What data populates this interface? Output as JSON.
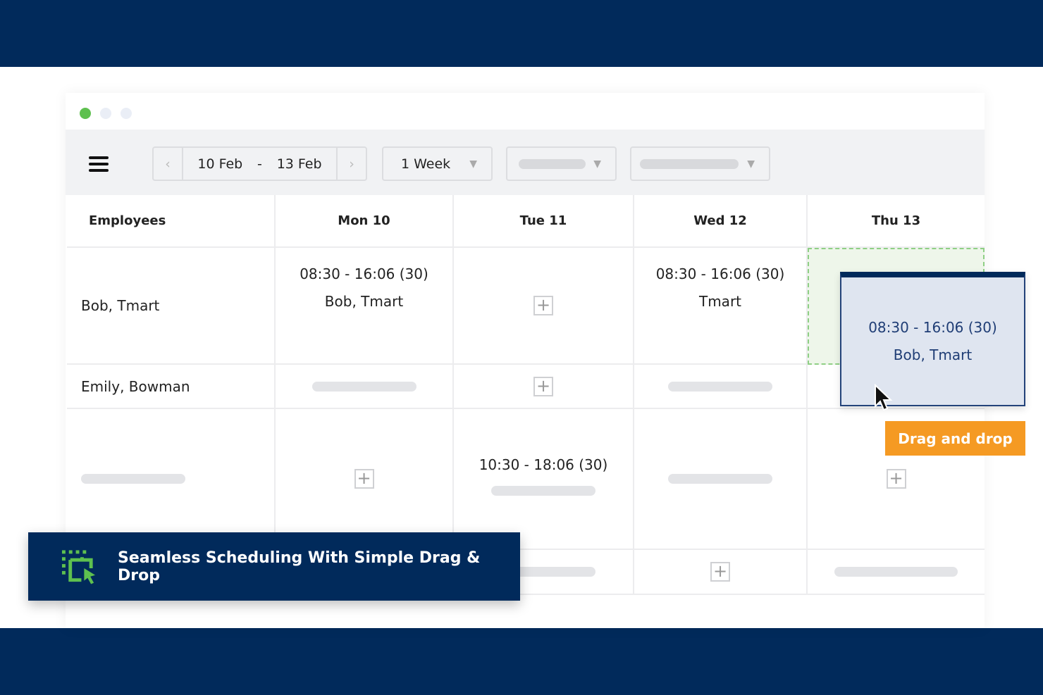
{
  "colors": {
    "banner": "#012a5b",
    "accent_orange": "#f59a23",
    "green": "#5ec04f",
    "drag_card": "#dfe5f0"
  },
  "toolbar": {
    "date_start": "10 Feb",
    "date_sep": "-",
    "date_end": "13 Feb",
    "range_select": "1 Week"
  },
  "grid": {
    "headers": [
      "Employees",
      "Mon 10",
      "Tue 11",
      "Wed 12",
      "Thu 13"
    ],
    "rows": [
      {
        "employee": "Bob, Tmart",
        "mon": {
          "time": "08:30 - 16:06 (30)",
          "name": "Bob, Tmart"
        },
        "wed": {
          "time": "08:30 - 16:06 (30)",
          "name": "Tmart"
        }
      },
      {
        "employee": "Emily, Bowman"
      },
      {
        "tue": {
          "time": "10:30 - 18:06 (30)"
        }
      }
    ]
  },
  "drag_card": {
    "time": "08:30 - 16:06 (30)",
    "name": "Bob, Tmart"
  },
  "drag_label": "Drag and drop",
  "banner": {
    "text": "Seamless Scheduling With Simple Drag & Drop",
    "icon": "drag-select-icon"
  }
}
